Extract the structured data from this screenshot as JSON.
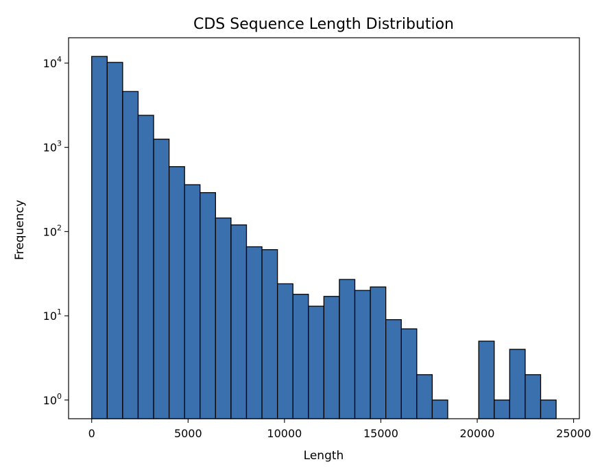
{
  "chart_data": {
    "type": "bar",
    "title": "CDS Sequence Length Distribution",
    "xlabel": "Length",
    "ylabel": "Frequency",
    "bar_color": "#3a70ad",
    "edge_color": "#000000",
    "y_scale": "log",
    "ylim": [
      0.6,
      20000
    ],
    "xlim": [
      -1200,
      25300
    ],
    "grid": false,
    "x_ticks": [
      {
        "value": 0,
        "label": "0"
      },
      {
        "value": 5000,
        "label": "5000"
      },
      {
        "value": 10000,
        "label": "10000"
      },
      {
        "value": 15000,
        "label": "15000"
      },
      {
        "value": 20000,
        "label": "20000"
      },
      {
        "value": 25000,
        "label": "25000"
      }
    ],
    "y_ticks": [
      {
        "value": 1,
        "base": "10",
        "exp": "0"
      },
      {
        "value": 10,
        "base": "10",
        "exp": "1"
      },
      {
        "value": 100,
        "base": "10",
        "exp": "2"
      },
      {
        "value": 1000,
        "base": "10",
        "exp": "3"
      },
      {
        "value": 10000,
        "base": "10",
        "exp": "4"
      }
    ],
    "bins": [
      {
        "start": 0,
        "end": 803,
        "count": 12000
      },
      {
        "start": 803,
        "end": 1606,
        "count": 10200
      },
      {
        "start": 1606,
        "end": 2409,
        "count": 4600
      },
      {
        "start": 2409,
        "end": 3212,
        "count": 2400
      },
      {
        "start": 3212,
        "end": 4015,
        "count": 1250
      },
      {
        "start": 4015,
        "end": 4818,
        "count": 590
      },
      {
        "start": 4818,
        "end": 5621,
        "count": 360
      },
      {
        "start": 5621,
        "end": 6424,
        "count": 290
      },
      {
        "start": 6424,
        "end": 7227,
        "count": 145
      },
      {
        "start": 7227,
        "end": 8030,
        "count": 120
      },
      {
        "start": 8030,
        "end": 8833,
        "count": 66
      },
      {
        "start": 8833,
        "end": 9636,
        "count": 61
      },
      {
        "start": 9636,
        "end": 10439,
        "count": 24
      },
      {
        "start": 10439,
        "end": 11242,
        "count": 18
      },
      {
        "start": 11242,
        "end": 12045,
        "count": 13
      },
      {
        "start": 12045,
        "end": 12848,
        "count": 17
      },
      {
        "start": 12848,
        "end": 13651,
        "count": 27
      },
      {
        "start": 13651,
        "end": 14454,
        "count": 20
      },
      {
        "start": 14454,
        "end": 15257,
        "count": 22
      },
      {
        "start": 15257,
        "end": 16060,
        "count": 9
      },
      {
        "start": 16060,
        "end": 16863,
        "count": 7
      },
      {
        "start": 16863,
        "end": 17666,
        "count": 2
      },
      {
        "start": 17666,
        "end": 18469,
        "count": 1
      },
      {
        "start": 20078,
        "end": 20881,
        "count": 5
      },
      {
        "start": 20881,
        "end": 21684,
        "count": 1
      },
      {
        "start": 21684,
        "end": 22487,
        "count": 4
      },
      {
        "start": 22487,
        "end": 23290,
        "count": 2
      },
      {
        "start": 23290,
        "end": 24093,
        "count": 1
      }
    ]
  }
}
